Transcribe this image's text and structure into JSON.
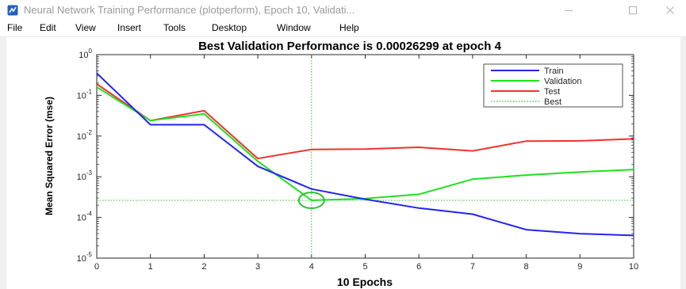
{
  "window": {
    "title": "Neural Network Training Performance (plotperform), Epoch 10, Validati...",
    "controls": [
      "minimize",
      "maximize",
      "close"
    ]
  },
  "menu": {
    "items": [
      "File",
      "Edit",
      "View",
      "Insert",
      "Tools",
      "Desktop",
      "Window",
      "Help"
    ]
  },
  "colors": {
    "train": "#2323f5",
    "validation": "#1ee01e",
    "test": "#f23030",
    "best": "#2fbf2f",
    "app_icon": "#1f5fbf"
  },
  "chart_data": {
    "type": "line",
    "title": "Best Validation Performance is 0.00026299 at epoch 4",
    "xlabel": "10 Epochs",
    "ylabel": "Mean Squared Error  (mse)",
    "yscale": "log",
    "xlim": [
      0,
      10
    ],
    "ylim": [
      1e-05,
      1
    ],
    "xticks": [
      "0",
      "1",
      "2",
      "3",
      "4",
      "5",
      "6",
      "7",
      "8",
      "9",
      "10"
    ],
    "yticks": [
      {
        "base": "10",
        "exp": "0"
      },
      {
        "base": "10",
        "exp": "-1"
      },
      {
        "base": "10",
        "exp": "-2"
      },
      {
        "base": "10",
        "exp": "-3"
      },
      {
        "base": "10",
        "exp": "-4"
      },
      {
        "base": "10",
        "exp": "-5"
      }
    ],
    "grid": false,
    "legend_position": "top-right",
    "x": [
      0,
      1,
      2,
      3,
      4,
      5,
      6,
      7,
      8,
      9,
      10
    ],
    "series": [
      {
        "name": "Train",
        "color": "#2323f5",
        "style": "solid",
        "values": [
          0.35,
          0.019,
          0.019,
          0.0018,
          0.0005,
          0.00028,
          0.00017,
          0.00012,
          5e-05,
          4e-05,
          3.6e-05
        ]
      },
      {
        "name": "Validation",
        "color": "#1ee01e",
        "style": "solid",
        "values": [
          0.16,
          0.024,
          0.035,
          0.0024,
          0.00026299,
          0.00029,
          0.00037,
          0.00087,
          0.0011,
          0.0013,
          0.0015
        ]
      },
      {
        "name": "Test",
        "color": "#f23030",
        "style": "solid",
        "values": [
          0.19,
          0.024,
          0.042,
          0.0028,
          0.0047,
          0.0048,
          0.0053,
          0.0043,
          0.0075,
          0.0076,
          0.0085
        ]
      },
      {
        "name": "Best",
        "color": "#2fbf2f",
        "style": "dotted",
        "best_epoch": 4,
        "best_value": 0.00026299
      }
    ]
  }
}
